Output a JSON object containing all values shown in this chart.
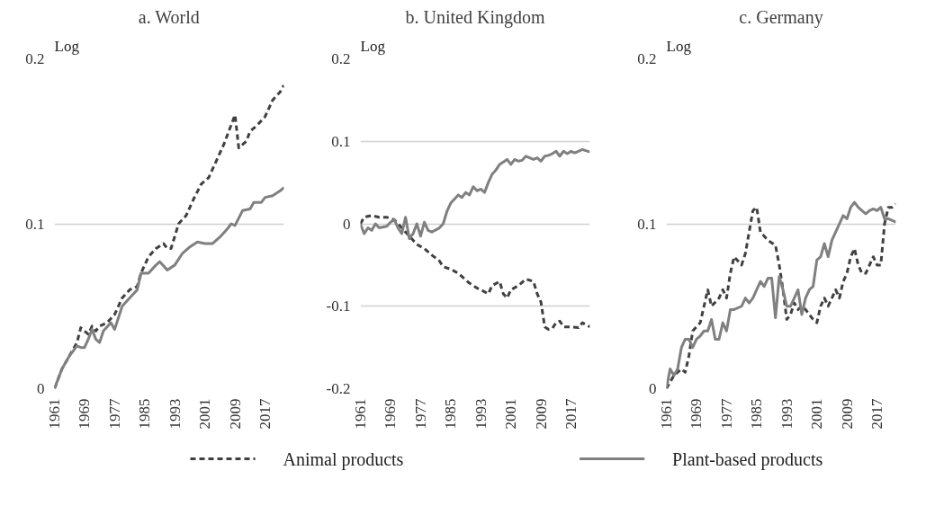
{
  "chart_data": [
    {
      "type": "line",
      "title": "a. World",
      "ylabel": "Log",
      "xlim": [
        1961,
        2022
      ],
      "ylim": [
        0,
        0.2
      ],
      "xticks": [
        1961,
        1969,
        1977,
        1985,
        1993,
        2001,
        2009,
        2017
      ],
      "yticks": [
        0,
        0.1,
        0.2
      ],
      "grid": "y",
      "legend": "bottom",
      "series": [
        {
          "name": "Animal products",
          "color": "#404040",
          "line_style": "dashed",
          "x": [
            1961,
            1963,
            1965,
            1967,
            1968,
            1969,
            1970,
            1971,
            1972,
            1973,
            1975,
            1977,
            1979,
            1981,
            1983,
            1984,
            1986,
            1988,
            1990,
            1991,
            1992,
            1994,
            1996,
            1998,
            2000,
            2002,
            2004,
            2006,
            2008,
            2009,
            2010,
            2012,
            2013,
            2015,
            2017,
            2019,
            2021,
            2022
          ],
          "values": [
            0,
            0.012,
            0.02,
            0.028,
            0.037,
            0.035,
            0.033,
            0.038,
            0.035,
            0.038,
            0.04,
            0.045,
            0.055,
            0.06,
            0.062,
            0.07,
            0.08,
            0.085,
            0.088,
            0.085,
            0.085,
            0.1,
            0.105,
            0.115,
            0.124,
            0.128,
            0.138,
            0.148,
            0.16,
            0.166,
            0.146,
            0.15,
            0.156,
            0.16,
            0.165,
            0.175,
            0.18,
            0.184
          ]
        },
        {
          "name": "Plant-based products",
          "color": "#808080",
          "line_style": "solid",
          "x": [
            1961,
            1963,
            1965,
            1967,
            1968,
            1969,
            1970,
            1971,
            1972,
            1973,
            1974,
            1976,
            1977,
            1979,
            1981,
            1983,
            1984,
            1986,
            1988,
            1989,
            1991,
            1993,
            1995,
            1997,
            1999,
            2001,
            2003,
            2005,
            2007,
            2008,
            2009,
            2011,
            2013,
            2014,
            2016,
            2017,
            2019,
            2021,
            2022
          ],
          "values": [
            0,
            0.012,
            0.02,
            0.026,
            0.025,
            0.025,
            0.03,
            0.036,
            0.03,
            0.028,
            0.035,
            0.04,
            0.036,
            0.05,
            0.055,
            0.06,
            0.07,
            0.07,
            0.075,
            0.077,
            0.072,
            0.075,
            0.082,
            0.086,
            0.089,
            0.088,
            0.088,
            0.092,
            0.097,
            0.1,
            0.099,
            0.108,
            0.109,
            0.113,
            0.113,
            0.116,
            0.117,
            0.12,
            0.122
          ]
        }
      ]
    },
    {
      "type": "line",
      "title": "b. United Kingdom",
      "ylabel": "Log",
      "xlim": [
        1961,
        2022
      ],
      "ylim": [
        -0.2,
        0.2
      ],
      "xticks": [
        1961,
        1969,
        1977,
        1985,
        1993,
        2001,
        2009,
        2017
      ],
      "yticks": [
        -0.2,
        -0.1,
        0,
        0.1,
        0.2
      ],
      "grid": "y",
      "series": [
        {
          "color": "#404040",
          "line_style": "dashed",
          "x": [
            1961,
            1962,
            1964,
            1966,
            1968,
            1970,
            1972,
            1974,
            1976,
            1978,
            1980,
            1982,
            1983,
            1985,
            1987,
            1989,
            1990,
            1992,
            1993,
            1995,
            1996,
            1998,
            1999,
            2000,
            2001,
            2003,
            2005,
            2007,
            2008,
            2009,
            2010,
            2011,
            2012,
            2013,
            2014,
            2015,
            2017,
            2019,
            2020,
            2022
          ],
          "values": [
            0,
            0.008,
            0.01,
            0.008,
            0.008,
            0.005,
            -0.005,
            -0.015,
            -0.025,
            -0.03,
            -0.038,
            -0.045,
            -0.052,
            -0.055,
            -0.06,
            -0.068,
            -0.072,
            -0.078,
            -0.08,
            -0.085,
            -0.075,
            -0.07,
            -0.085,
            -0.09,
            -0.08,
            -0.075,
            -0.067,
            -0.07,
            -0.085,
            -0.095,
            -0.125,
            -0.128,
            -0.127,
            -0.12,
            -0.118,
            -0.125,
            -0.125,
            -0.126,
            -0.12,
            -0.125
          ]
        },
        {
          "color": "#808080",
          "line_style": "solid",
          "x": [
            1961,
            1962,
            1963,
            1964,
            1965,
            1966,
            1968,
            1969,
            1970,
            1971,
            1972,
            1973,
            1974,
            1975,
            1976,
            1977,
            1978,
            1979,
            1980,
            1982,
            1983,
            1984,
            1985,
            1986,
            1987,
            1988,
            1989,
            1990,
            1991,
            1992,
            1993,
            1994,
            1995,
            1996,
            1997,
            1998,
            1999,
            2000,
            2001,
            2002,
            2003,
            2004,
            2005,
            2006,
            2007,
            2008,
            2009,
            2010,
            2011,
            2012,
            2013,
            2014,
            2015,
            2016,
            2017,
            2018,
            2020,
            2022
          ],
          "values": [
            0,
            -0.012,
            -0.005,
            -0.008,
            0,
            -0.005,
            -0.003,
            0.002,
            0.005,
            -0.005,
            -0.012,
            0.008,
            -0.018,
            -0.012,
            0,
            -0.015,
            0.002,
            -0.008,
            -0.01,
            -0.005,
            0,
            0.015,
            0.025,
            0.03,
            0.035,
            0.032,
            0.038,
            0.035,
            0.045,
            0.04,
            0.042,
            0.038,
            0.05,
            0.06,
            0.065,
            0.072,
            0.075,
            0.078,
            0.072,
            0.078,
            0.076,
            0.077,
            0.082,
            0.08,
            0.078,
            0.08,
            0.076,
            0.082,
            0.083,
            0.085,
            0.088,
            0.082,
            0.088,
            0.085,
            0.088,
            0.086,
            0.09,
            0.087
          ]
        }
      ]
    },
    {
      "type": "line",
      "title": "c. Germany",
      "ylabel": "Log",
      "xlim": [
        1961,
        2022
      ],
      "ylim": [
        0,
        0.2
      ],
      "xticks": [
        1961,
        1969,
        1977,
        1985,
        1993,
        2001,
        2009,
        2017
      ],
      "yticks": [
        0,
        0.1,
        0.2
      ],
      "grid": "y",
      "series": [
        {
          "color": "#404040",
          "line_style": "dashed",
          "x": [
            1961,
            1963,
            1965,
            1966,
            1967,
            1968,
            1970,
            1971,
            1972,
            1973,
            1975,
            1976,
            1977,
            1978,
            1979,
            1981,
            1982,
            1983,
            1984,
            1985,
            1986,
            1988,
            1990,
            1991,
            1992,
            1993,
            1994,
            1995,
            1996,
            1997,
            1998,
            1999,
            2000,
            2001,
            2002,
            2003,
            2004,
            2005,
            2006,
            2007,
            2008,
            2009,
            2010,
            2011,
            2012,
            2013,
            2014,
            2015,
            2016,
            2017,
            2018,
            2019,
            2020,
            2021,
            2022
          ],
          "values": [
            0,
            0.008,
            0.012,
            0.01,
            0.02,
            0.035,
            0.04,
            0.05,
            0.06,
            0.05,
            0.055,
            0.06,
            0.055,
            0.07,
            0.08,
            0.075,
            0.082,
            0.095,
            0.108,
            0.11,
            0.095,
            0.09,
            0.087,
            0.075,
            0.06,
            0.042,
            0.045,
            0.052,
            0.048,
            0.05,
            0.048,
            0.045,
            0.042,
            0.04,
            0.05,
            0.055,
            0.05,
            0.055,
            0.06,
            0.055,
            0.065,
            0.07,
            0.08,
            0.085,
            0.075,
            0.07,
            0.07,
            0.075,
            0.08,
            0.075,
            0.075,
            0.1,
            0.11,
            0.11,
            0.112
          ]
        },
        {
          "color": "#808080",
          "line_style": "solid",
          "x": [
            1961,
            1962,
            1963,
            1964,
            1965,
            1966,
            1967,
            1968,
            1969,
            1970,
            1971,
            1972,
            1973,
            1974,
            1975,
            1976,
            1977,
            1978,
            1979,
            1981,
            1982,
            1983,
            1984,
            1985,
            1986,
            1987,
            1988,
            1989,
            1990,
            1991,
            1992,
            1993,
            1994,
            1995,
            1996,
            1997,
            1998,
            1999,
            2000,
            2001,
            2002,
            2003,
            2004,
            2005,
            2006,
            2007,
            2008,
            2009,
            2010,
            2011,
            2012,
            2013,
            2014,
            2015,
            2016,
            2017,
            2018,
            2019,
            2020,
            2022
          ],
          "values": [
            0,
            0.012,
            0.008,
            0.012,
            0.025,
            0.03,
            0.03,
            0.025,
            0.03,
            0.032,
            0.035,
            0.035,
            0.042,
            0.03,
            0.03,
            0.04,
            0.035,
            0.048,
            0.048,
            0.05,
            0.055,
            0.052,
            0.055,
            0.06,
            0.065,
            0.062,
            0.067,
            0.067,
            0.043,
            0.068,
            0.06,
            0.05,
            0.05,
            0.055,
            0.06,
            0.045,
            0.055,
            0.06,
            0.062,
            0.078,
            0.08,
            0.088,
            0.08,
            0.09,
            0.095,
            0.1,
            0.105,
            0.103,
            0.11,
            0.113,
            0.11,
            0.108,
            0.106,
            0.108,
            0.109,
            0.108,
            0.11,
            0.103,
            0.103,
            0.101
          ]
        }
      ]
    }
  ]
}
